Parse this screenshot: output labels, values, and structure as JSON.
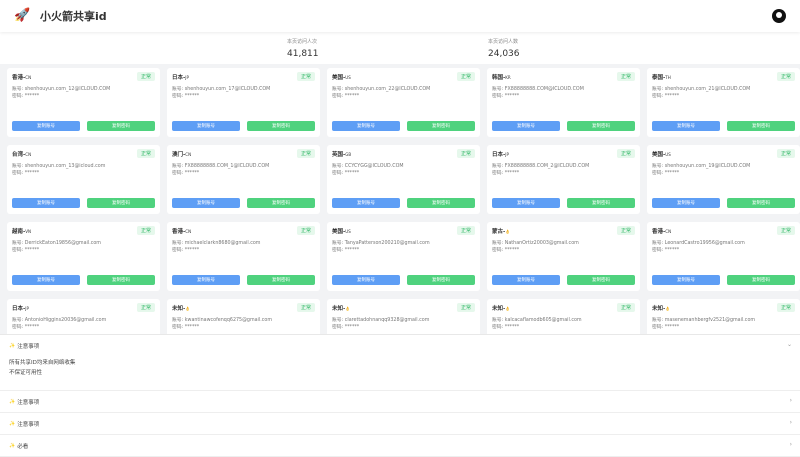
{
  "header": {
    "title": "小火箭共享id",
    "logo_icon": "rocket-icon",
    "github_icon": "github-icon"
  },
  "stats": [
    {
      "label": "本页访问人次",
      "value": "41,811"
    },
    {
      "label": "本页访问人数",
      "value": "24,036"
    }
  ],
  "labels": {
    "account": "账号: ",
    "password": "密码: ",
    "copy_account": "复制账号",
    "copy_password": "复制密码",
    "status": "正常"
  },
  "colors": {
    "copy_account": "#5e9ef5",
    "copy_password": "#4fd27e",
    "status": "#2fb765"
  },
  "cards": [
    {
      "region": "香港-",
      "code": "CN",
      "account": "shenhouyun.com_12@ICLOUD.COM",
      "password": "******"
    },
    {
      "region": "日本-",
      "code": "JP",
      "account": "shenhouyun.com_17@ICLOUD.COM",
      "password": "******"
    },
    {
      "region": "美国-",
      "code": "US",
      "account": "shenhouyun.com_22@ICLOUD.COM",
      "password": "******"
    },
    {
      "region": "韩国-",
      "code": "KR",
      "account": "FX88888888.COM@ICLOUD.COM",
      "password": "******"
    },
    {
      "region": "泰国-",
      "code": "TH",
      "account": "shenhouyun.com_21@ICLOUD.COM",
      "password": "******"
    },
    {
      "region": "台湾-",
      "code": "CN",
      "account": "shenhouyun.com_13@icloud.com",
      "password": "******"
    },
    {
      "region": "澳门-",
      "code": "CN",
      "account": "FX88888888.COM_1@ICLOUD.COM",
      "password": "******"
    },
    {
      "region": "英国-",
      "code": "GB",
      "account": "CCYCYGG@ICLOUD.COM",
      "password": "******"
    },
    {
      "region": "日本-",
      "code": "JP",
      "account": "FX88888888.COM_2@ICLOUD.COM",
      "password": "******"
    },
    {
      "region": "美国-",
      "code": "US",
      "account": "shenhouyun.com_19@ICLOUD.COM",
      "password": "******"
    },
    {
      "region": "越南-",
      "code": "VN",
      "account": "DerrickEaton19856@gmail.com",
      "password": "******"
    },
    {
      "region": "香港-",
      "code": "CN",
      "account": "michaelclarkn8680@gmail.com",
      "password": "******"
    },
    {
      "region": "美国-",
      "code": "US",
      "account": "TanyaPatterson200210@gmail.com",
      "password": "******"
    },
    {
      "region": "蒙古-",
      "code": "👌",
      "account": "NathanOrtiz20003@gmail.com",
      "password": "******"
    },
    {
      "region": "香港-",
      "code": "CN",
      "account": "LeonardCastro19956@gmail.com",
      "password": "******"
    },
    {
      "region": "日本-",
      "code": "JP",
      "account": "AntonioHiggins20036@gmail.com",
      "password": "******"
    },
    {
      "region": "未知-",
      "code": "👌",
      "account": "kwantinawcofenqq6275@gmail.com",
      "password": "******"
    },
    {
      "region": "未知-",
      "code": "👌",
      "account": "clarettadohnanqq9328@gmail.com",
      "password": "******"
    },
    {
      "region": "未知-",
      "code": "👌",
      "account": "kalcacaflamodb605@gmail.com",
      "password": "******"
    },
    {
      "region": "未知-",
      "code": "👌",
      "account": "masenemanhbergfv2521@gmail.com",
      "password": "******"
    }
  ],
  "notes": [
    {
      "title": "注意事项",
      "expanded": true,
      "body": [
        "所有共享ID均来自网络收集",
        "不保证可用性"
      ]
    },
    {
      "title": "注意事项",
      "expanded": false
    },
    {
      "title": "注意事项",
      "expanded": false
    },
    {
      "title": "必看",
      "expanded": false
    }
  ]
}
